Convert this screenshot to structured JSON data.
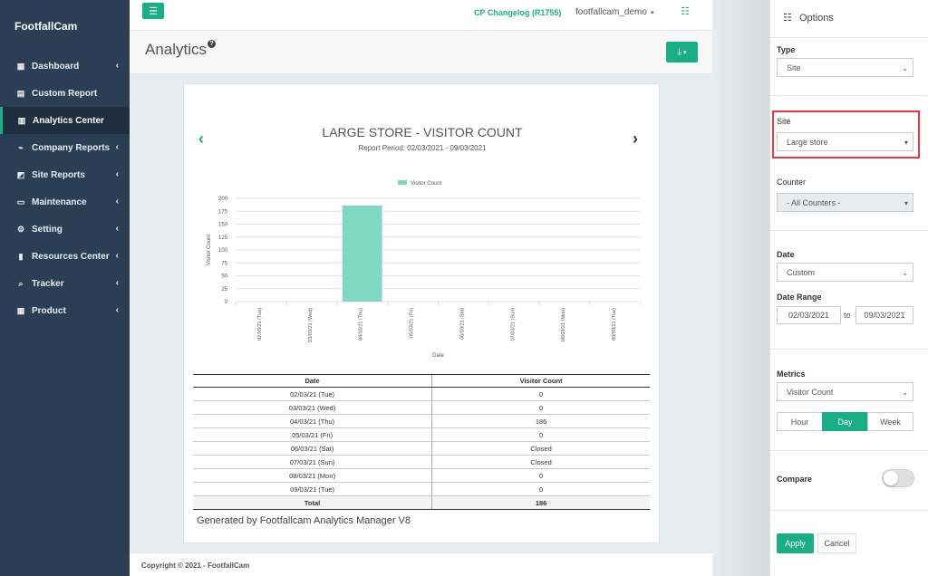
{
  "sidebar": {
    "brand": "FootfallCam",
    "items": [
      {
        "label": "Dashboard",
        "icon": "grid-icon",
        "glyph": "▦",
        "has_chevron": true
      },
      {
        "label": "Custom Report",
        "icon": "file-icon",
        "glyph": "▤",
        "has_chevron": false
      },
      {
        "label": "Analytics Center",
        "icon": "bar-chart-icon",
        "glyph": "▥",
        "has_chevron": false,
        "active": true
      },
      {
        "label": "Company Reports",
        "icon": "line-chart-icon",
        "glyph": "⌁",
        "has_chevron": true
      },
      {
        "label": "Site Reports",
        "icon": "area-chart-icon",
        "glyph": "◩",
        "has_chevron": true
      },
      {
        "label": "Maintenance",
        "icon": "monitor-icon",
        "glyph": "▭",
        "has_chevron": true
      },
      {
        "label": "Setting",
        "icon": "cogs-icon",
        "glyph": "⚙",
        "has_chevron": true
      },
      {
        "label": "Resources Center",
        "icon": "book-icon",
        "glyph": "▮",
        "has_chevron": true
      },
      {
        "label": "Tracker",
        "icon": "search-icon",
        "glyph": "⌕",
        "has_chevron": true
      },
      {
        "label": "Product",
        "icon": "th-icon",
        "glyph": "▦",
        "has_chevron": true
      }
    ]
  },
  "topbar": {
    "changelog": "CP Changelog (R1755)",
    "user": "footfallcam_demo"
  },
  "page": {
    "title": "Analytics",
    "help_glyph": "?"
  },
  "report": {
    "title": "LARGE STORE - VISITOR COUNT",
    "period": "Report Period: 02/03/2021 - 09/03/2021",
    "generated": "Generated by Footfallcam Analytics Manager V8",
    "table": {
      "headers": [
        "Date",
        "Visitor Count"
      ],
      "rows": [
        [
          "02/03/21 (Tue)",
          "0"
        ],
        [
          "03/03/21 (Wed)",
          "0"
        ],
        [
          "04/03/21 (Thu)",
          "186"
        ],
        [
          "05/03/21 (Fri)",
          "0"
        ],
        [
          "06/03/21 (Sat)",
          "Closed"
        ],
        [
          "07/03/21 (Sun)",
          "Closed"
        ],
        [
          "08/03/21 (Mon)",
          "0"
        ],
        [
          "09/03/21 (Tue)",
          "0"
        ]
      ],
      "total": [
        "Total",
        "186"
      ]
    }
  },
  "chart_data": {
    "type": "bar",
    "categories": [
      "02/03/21 (Tue)",
      "03/03/21 (Wed)",
      "04/03/21 (Thu)",
      "05/03/21 (Fri)",
      "06/03/21 (Sat)",
      "07/03/21 (Sun)",
      "08/03/21 (Mon)",
      "09/03/21 (Tue)"
    ],
    "series": [
      {
        "name": "Visitor Count",
        "values": [
          0,
          0,
          186,
          0,
          0,
          0,
          0,
          0
        ],
        "color": "#80d8c2"
      }
    ],
    "yticks": [
      0,
      25,
      50,
      75,
      100,
      125,
      150,
      175,
      200
    ],
    "ylim": [
      0,
      200
    ],
    "xlabel": "Date",
    "ylabel": "Visitor Count",
    "grid": true,
    "legend": "top-center"
  },
  "footer": {
    "copyright": "Copyright © 2021 - FootfallCam"
  },
  "options": {
    "title": "Options",
    "type_label": "Type",
    "type_value": "Site",
    "site_label": "Site",
    "site_value": "Large store",
    "counter_label": "Counter",
    "counter_value": "- All Counters -",
    "date_label": "Date",
    "date_value": "Custom",
    "date_range_label": "Date Range",
    "date_from": "02/03/2021",
    "date_to_label": "to",
    "date_to": "09/03/2021",
    "metrics_label": "Metrics",
    "metrics_value": "Visitor Count",
    "granularity": [
      "Hour",
      "Day",
      "Week"
    ],
    "granularity_selected": "Day",
    "compare_label": "Compare",
    "compare_on": false,
    "apply_label": "Apply",
    "cancel_label": "Cancel"
  },
  "colors": {
    "accent": "#1aae86",
    "sidebar_bg": "#2a3f54",
    "highlight": "#e63946"
  }
}
